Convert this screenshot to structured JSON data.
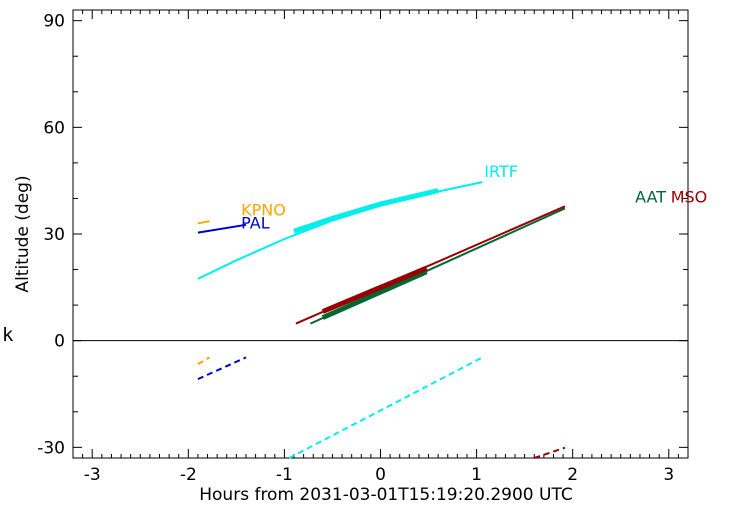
{
  "chart_data": {
    "type": "line",
    "title": "",
    "xlabel": "Hours from 2031-03-01T15:19:20.2900 UTC",
    "ylabel": "Altitude (deg)",
    "xlim": [
      -3.2,
      3.2
    ],
    "ylim": [
      -33,
      93
    ],
    "xticks": [
      -3,
      -2,
      -1,
      0,
      1,
      2,
      3
    ],
    "yticks": [
      -30,
      0,
      30,
      60,
      90
    ],
    "grid": false,
    "legend": "labels placed next to each curve",
    "series": [
      {
        "name": "PAL",
        "color": "#0000cc",
        "solid": {
          "x": [
            -1.9,
            -1.4
          ],
          "y": [
            30.4,
            32.6
          ]
        },
        "dashed": {
          "x": [
            -1.9,
            -1.4
          ],
          "y": [
            -10.8,
            -4.7
          ]
        },
        "label_at": [
          -1.45,
          31.5
        ]
      },
      {
        "name": "KPNO",
        "color": "#ffa500",
        "solid": {
          "x": [
            -1.9,
            -1.78
          ],
          "y": [
            33.0,
            33.6
          ]
        },
        "dashed": {
          "x": [
            -1.9,
            -1.78
          ],
          "y": [
            -6.6,
            -4.7
          ]
        },
        "label_at": [
          -1.45,
          35.2
        ]
      },
      {
        "name": "IRTF",
        "color": "#00eeee",
        "solid": {
          "x": [
            -1.9,
            -1.5,
            -1.0,
            -0.5,
            0.0,
            0.5,
            1.06
          ],
          "y": [
            17.4,
            22.6,
            28.6,
            33.8,
            38.0,
            41.4,
            44.6
          ]
        },
        "thick": {
          "x": [
            -0.9,
            -0.5,
            0.0,
            0.6
          ],
          "y": [
            30.8,
            34.4,
            38.4,
            42.2
          ]
        },
        "dashed": {
          "x": [
            -0.95,
            1.06
          ],
          "y": [
            -33.0,
            -4.7
          ]
        },
        "label_at": [
          1.08,
          46.0
        ]
      },
      {
        "name": "AAT",
        "color": "#006633",
        "solid": {
          "x": [
            -0.73,
            1.92
          ],
          "y": [
            4.8,
            37.2
          ]
        },
        "thick": {
          "x": [
            -0.6,
            0.48
          ],
          "y": [
            6.5,
            19.4
          ]
        },
        "label_at": [
          2.65,
          38.8
        ]
      },
      {
        "name": "MSO",
        "color": "#990000",
        "solid": {
          "x": [
            -0.88,
            1.92
          ],
          "y": [
            4.8,
            37.8
          ]
        },
        "thick": {
          "x": [
            -0.6,
            0.48
          ],
          "y": [
            8.2,
            20.4
          ]
        },
        "dashed": {
          "x": [
            1.6,
            1.92
          ],
          "y": [
            -33.0,
            -30.1
          ]
        },
        "label_at": [
          3.02,
          38.8
        ]
      }
    ],
    "reference_line": {
      "y": 0
    }
  },
  "stray_text": "k"
}
